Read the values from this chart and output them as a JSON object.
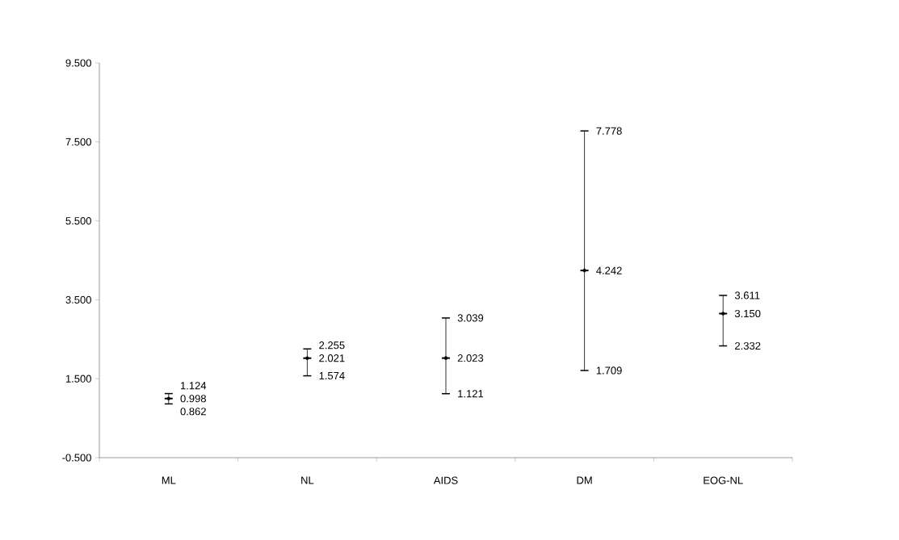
{
  "chart_data": {
    "type": "scatter",
    "categories": [
      "ML",
      "NL",
      "AIDS",
      "DM",
      "EOG-NL"
    ],
    "values": [
      0.998,
      2.021,
      2.023,
      4.242,
      3.15
    ],
    "errors": [
      [
        0.862,
        1.124
      ],
      [
        1.574,
        2.255
      ],
      [
        1.121,
        3.039
      ],
      [
        1.709,
        7.778
      ],
      [
        2.332,
        3.611
      ]
    ],
    "color": "#000000",
    "data_labels": true,
    "value_labels": [
      "0.998",
      "2.021",
      "2.023",
      "4.242",
      "3.150"
    ],
    "annotations": [
      {
        "text": "1.124",
        "x": "ML",
        "y": 1.124
      },
      {
        "text": "0.862",
        "x": "ML",
        "y": 0.862
      },
      {
        "text": "2.255",
        "x": "NL",
        "y": 2.255
      },
      {
        "text": "1.574",
        "x": "NL",
        "y": 1.574
      },
      {
        "text": "3.039",
        "x": "AIDS",
        "y": 3.039
      },
      {
        "text": "1.121",
        "x": "AIDS",
        "y": 1.121
      },
      {
        "text": "7.778",
        "x": "DM",
        "y": 7.778
      },
      {
        "text": "1.709",
        "x": "DM",
        "y": 1.709
      },
      {
        "text": "3.611",
        "x": "EOG-NL",
        "y": 3.611
      },
      {
        "text": "2.332",
        "x": "EOG-NL",
        "y": 2.332
      }
    ],
    "ylim": [
      -0.5,
      9.5
    ],
    "yticks": [
      {
        "value": -0.5,
        "label": "-0.500"
      },
      {
        "value": 1.5,
        "label": "1.500"
      },
      {
        "value": 3.5,
        "label": "3.500"
      },
      {
        "value": 5.5,
        "label": "5.500"
      },
      {
        "value": 7.5,
        "label": "7.500"
      },
      {
        "value": 9.5,
        "label": "9.500"
      }
    ],
    "grid": false
  }
}
